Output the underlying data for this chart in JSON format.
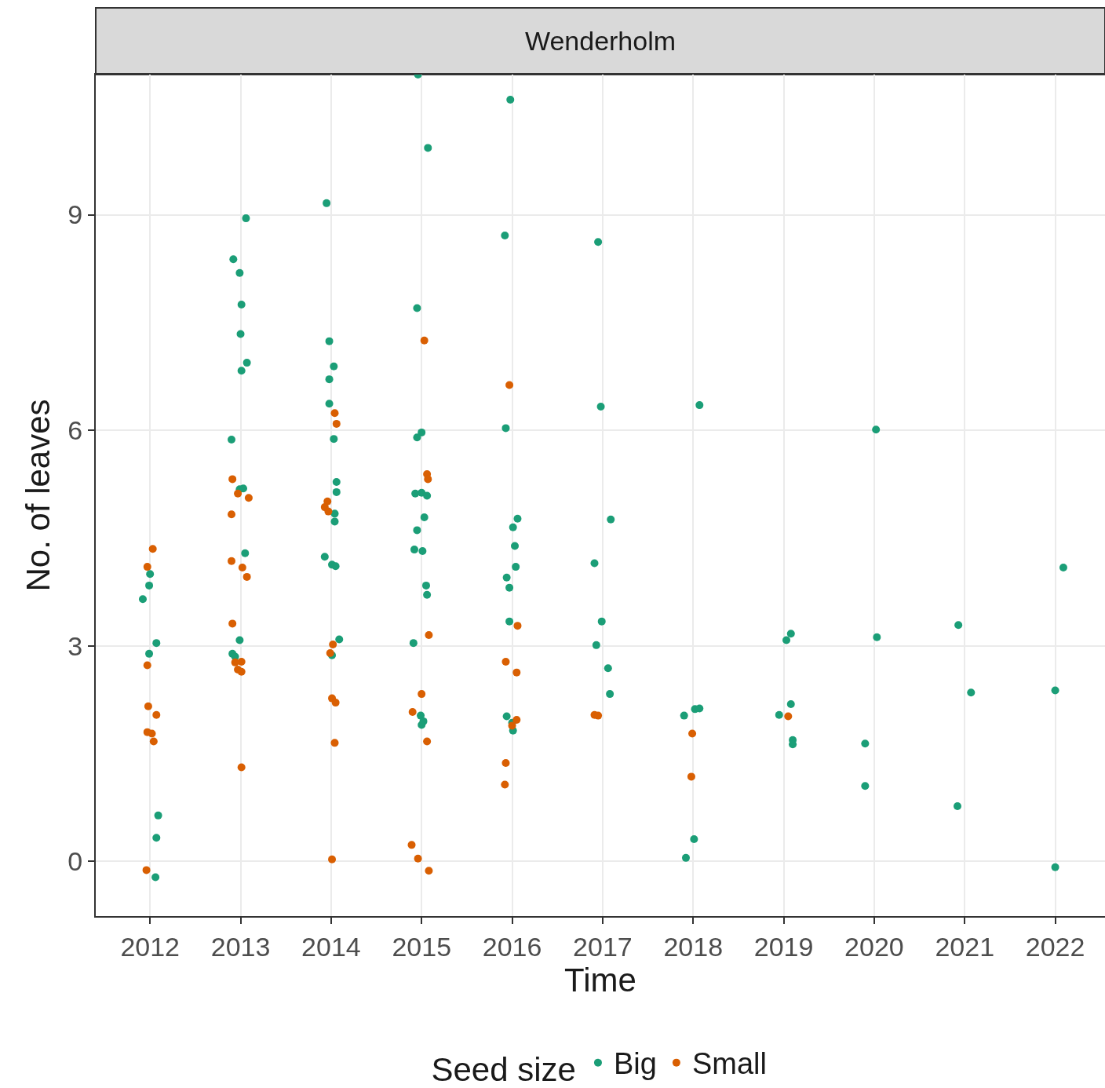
{
  "chart_data": {
    "type": "scatter",
    "title": "Wenderholm",
    "xlabel": "Time",
    "ylabel": "No. of leaves",
    "legend_title": "Seed size",
    "xlim": [
      2011.4,
      2022.55
    ],
    "ylim": [
      -0.76,
      10.95
    ],
    "xticks": [
      2012,
      2013,
      2014,
      2015,
      2016,
      2017,
      2018,
      2019,
      2020,
      2021,
      2022
    ],
    "yticks": [
      0,
      3,
      6,
      9
    ],
    "grid": true,
    "legend": "bottom",
    "marker": "circle",
    "series": [
      {
        "name": "Big",
        "color": "#1b9e77",
        "x": [
          2011.92,
          2011.99,
          2012.0,
          2011.99,
          2012.07,
          2012.09,
          2012.07,
          2012.06,
          2012.92,
          2012.99,
          2013.01,
          2013.0,
          2013.01,
          2013.07,
          2012.9,
          2012.99,
          2013.03,
          2013.05,
          2012.91,
          2012.94,
          2012.99,
          2013.06,
          2013.95,
          2013.98,
          2014.03,
          2013.98,
          2013.98,
          2014.03,
          2014.06,
          2014.06,
          2014.04,
          2014.04,
          2013.93,
          2014.01,
          2014.05,
          2014.09,
          2014.01,
          2014.96,
          2015.07,
          2014.95,
          2015.0,
          2014.95,
          2014.93,
          2015.0,
          2015.06,
          2015.03,
          2014.95,
          2014.92,
          2015.01,
          2015.05,
          2015.06,
          2014.91,
          2014.99,
          2015.02,
          2015.0,
          2015.98,
          2015.92,
          2015.93,
          2016.06,
          2016.01,
          2016.03,
          2016.04,
          2015.94,
          2015.97,
          2015.97,
          2015.94,
          2016.0,
          2016.01,
          2016.95,
          2016.98,
          2017.09,
          2016.91,
          2016.99,
          2016.93,
          2017.06,
          2017.08,
          2018.07,
          2017.9,
          2018.02,
          2018.07,
          2018.01,
          2017.92,
          2019.08,
          2019.03,
          2019.08,
          2018.95,
          2019.1,
          2019.1,
          2020.02,
          2020.03,
          2019.9,
          2019.9,
          2020.93,
          2021.07,
          2020.92,
          2022.09,
          2022.0,
          2022.0
        ],
        "values": [
          3.65,
          3.84,
          4.0,
          2.89,
          3.04,
          0.64,
          0.33,
          -0.22,
          8.38,
          8.19,
          7.75,
          7.34,
          6.83,
          6.94,
          5.87,
          5.18,
          5.19,
          4.29,
          2.89,
          2.85,
          3.08,
          8.95,
          9.16,
          7.24,
          6.89,
          6.71,
          6.37,
          5.88,
          5.28,
          5.14,
          4.84,
          4.73,
          4.24,
          4.13,
          4.11,
          3.09,
          2.87,
          10.95,
          9.93,
          7.7,
          5.97,
          5.9,
          5.12,
          5.13,
          5.09,
          4.79,
          4.61,
          4.34,
          4.32,
          3.84,
          3.71,
          3.04,
          2.03,
          1.95,
          1.9,
          10.6,
          8.71,
          6.03,
          4.77,
          4.65,
          4.39,
          4.1,
          3.95,
          3.81,
          3.34,
          2.02,
          1.93,
          1.82,
          8.62,
          6.33,
          4.76,
          4.15,
          3.34,
          3.01,
          2.69,
          2.33,
          6.35,
          2.03,
          2.12,
          2.13,
          0.31,
          0.05,
          3.17,
          3.08,
          2.19,
          2.04,
          1.69,
          1.63,
          6.01,
          3.12,
          1.64,
          1.05,
          3.29,
          2.35,
          0.77,
          4.09,
          2.38,
          -0.08
        ]
      },
      {
        "name": "Small",
        "color": "#d95f02",
        "x": [
          2012.03,
          2011.97,
          2011.97,
          2011.98,
          2011.97,
          2012.07,
          2011.96,
          2012.04,
          2012.02,
          2012.91,
          2012.97,
          2013.09,
          2012.9,
          2012.9,
          2013.02,
          2013.07,
          2012.91,
          2013.01,
          2012.94,
          2012.97,
          2013.01,
          2013.01,
          2014.04,
          2014.06,
          2013.96,
          2013.93,
          2013.97,
          2014.02,
          2013.99,
          2014.01,
          2014.05,
          2014.04,
          2014.01,
          2015.03,
          2015.06,
          2015.07,
          2015.08,
          2015.0,
          2014.9,
          2015.06,
          2014.89,
          2014.96,
          2015.08,
          2015.97,
          2016.06,
          2015.93,
          2016.05,
          2016.05,
          2016.0,
          2015.93,
          2015.92,
          2016.91,
          2016.95,
          2017.99,
          2017.98,
          2019.05
        ],
        "values": [
          4.35,
          4.1,
          2.73,
          2.16,
          1.8,
          2.04,
          -0.12,
          1.67,
          1.78,
          5.32,
          5.12,
          5.06,
          4.83,
          4.18,
          4.09,
          3.96,
          3.31,
          2.78,
          2.77,
          2.67,
          2.64,
          1.31,
          6.24,
          6.09,
          5.01,
          4.93,
          4.87,
          3.02,
          2.9,
          2.27,
          2.21,
          1.65,
          0.03,
          7.25,
          5.39,
          5.32,
          3.15,
          2.33,
          2.08,
          1.67,
          0.23,
          0.04,
          -0.13,
          6.63,
          3.28,
          2.78,
          2.63,
          1.97,
          1.89,
          1.37,
          1.07,
          2.04,
          2.03,
          1.78,
          1.18,
          2.02
        ]
      }
    ]
  }
}
